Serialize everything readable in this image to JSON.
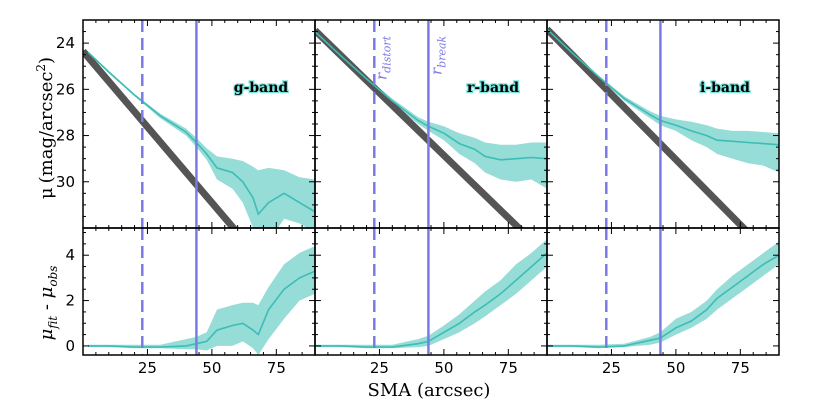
{
  "chart_data": {
    "type": "line",
    "xlabel": "SMA (arcsec)",
    "ylabel_top": "μ (mag/arcsec²)",
    "ylabel_top_parts": {
      "mu": "μ",
      "unit": "(mag/arcsec",
      "sup": "2",
      "close": ")"
    },
    "ylabel_bottom": "μfit - μobs",
    "ylabel_bottom_parts": {
      "mu1": "μ",
      "sub1": "fit",
      "dash": " - ",
      "mu2": "μ",
      "sub2": "obs"
    },
    "xlim": [
      0,
      90
    ],
    "xticks": [
      25,
      50,
      75
    ],
    "top_ylim": [
      32,
      23
    ],
    "top_yticks": [
      24,
      26,
      28,
      30
    ],
    "bottom_ylim": [
      -0.4,
      5.2
    ],
    "bottom_yticks": [
      0,
      2,
      4
    ],
    "r_distort": 23,
    "r_break": 44,
    "annotations": {
      "r_distort": {
        "r": "r",
        "sub": "distort"
      },
      "r_break": {
        "r": "r",
        "sub": "break"
      }
    },
    "colors": {
      "model": "#555555",
      "data": "#3cbdb5",
      "band": "#5ec9c1",
      "vline": "#7b7be6"
    },
    "panels": [
      {
        "band": "g-band",
        "model_x": [
          0,
          66
        ],
        "model_y": [
          24.35,
          33.0
        ],
        "obs_x": [
          2,
          10,
          20,
          30,
          40,
          44,
          48,
          52,
          58,
          62,
          66,
          68,
          72,
          78,
          84,
          90
        ],
        "obs_y": [
          24.4,
          25.25,
          26.25,
          27.15,
          27.85,
          28.3,
          28.8,
          29.4,
          29.6,
          30.0,
          30.7,
          31.4,
          30.9,
          30.5,
          30.9,
          31.3
        ],
        "obs_lo": [
          24.35,
          25.2,
          26.2,
          27.05,
          27.7,
          28.1,
          28.55,
          28.9,
          29.0,
          29.1,
          29.35,
          29.5,
          29.4,
          29.5,
          29.8,
          29.9
        ],
        "obs_hi": [
          24.45,
          25.3,
          26.3,
          27.25,
          28.0,
          28.5,
          29.05,
          29.9,
          30.3,
          30.9,
          32.0,
          33.0,
          32.6,
          31.6,
          31.8,
          32.2
        ],
        "res_x": [
          2,
          10,
          20,
          30,
          40,
          44,
          48,
          52,
          58,
          62,
          66,
          68,
          72,
          78,
          84,
          90
        ],
        "res_y": [
          0,
          0,
          -0.05,
          -0.05,
          0.0,
          0.1,
          0.2,
          0.7,
          0.9,
          1.0,
          0.7,
          0.5,
          1.6,
          2.5,
          3.0,
          3.3
        ],
        "res_lo": [
          -0.05,
          -0.05,
          -0.1,
          -0.1,
          -0.15,
          -0.15,
          -0.2,
          0.0,
          0.0,
          0.2,
          -0.1,
          -0.4,
          0.3,
          1.2,
          2.0,
          2.3
        ],
        "res_hi": [
          0.05,
          0.05,
          0.05,
          0.05,
          0.3,
          0.4,
          0.6,
          1.6,
          1.8,
          1.9,
          1.9,
          1.8,
          2.6,
          3.6,
          4.1,
          4.4
        ]
      },
      {
        "band": "r-band",
        "model_x": [
          0,
          80
        ],
        "model_y": [
          23.45,
          32.1
        ],
        "obs_x": [
          0,
          10,
          20,
          30,
          40,
          44,
          50,
          56,
          62,
          66,
          72,
          78,
          84,
          90
        ],
        "obs_y": [
          23.5,
          24.55,
          25.55,
          26.5,
          27.35,
          27.6,
          27.9,
          28.35,
          28.6,
          28.9,
          29.05,
          29.0,
          28.95,
          29.0
        ],
        "obs_lo": [
          23.45,
          24.5,
          25.5,
          26.4,
          27.2,
          27.4,
          27.6,
          27.9,
          28.1,
          28.3,
          28.4,
          28.4,
          28.3,
          28.3
        ],
        "obs_hi": [
          23.55,
          24.6,
          25.6,
          26.6,
          27.5,
          27.8,
          28.2,
          28.8,
          29.2,
          29.6,
          29.9,
          30.0,
          29.9,
          30.3
        ],
        "res_x": [
          0,
          10,
          20,
          30,
          40,
          44,
          50,
          56,
          62,
          66,
          72,
          78,
          84,
          90
        ],
        "res_y": [
          0,
          0,
          -0.05,
          -0.05,
          0.1,
          0.2,
          0.6,
          1.0,
          1.5,
          1.8,
          2.3,
          2.9,
          3.5,
          4.1
        ],
        "res_lo": [
          -0.05,
          -0.05,
          -0.1,
          -0.1,
          -0.05,
          0.0,
          0.3,
          0.6,
          1.0,
          1.3,
          1.8,
          2.3,
          2.9,
          3.5
        ],
        "res_hi": [
          0.05,
          0.05,
          0.05,
          0.05,
          0.3,
          0.45,
          0.9,
          1.4,
          2.0,
          2.4,
          2.9,
          3.6,
          4.1,
          4.7
        ]
      },
      {
        "band": "i-band",
        "model_x": [
          0,
          78
        ],
        "model_y": [
          23.4,
          32.2
        ],
        "obs_x": [
          0,
          10,
          20,
          30,
          40,
          44,
          50,
          56,
          62,
          66,
          72,
          78,
          84,
          90
        ],
        "obs_y": [
          23.4,
          24.45,
          25.45,
          26.4,
          27.1,
          27.35,
          27.55,
          27.8,
          28.0,
          28.2,
          28.25,
          28.3,
          28.35,
          28.4
        ],
        "obs_lo": [
          23.35,
          24.4,
          25.4,
          26.3,
          26.95,
          27.15,
          27.3,
          27.4,
          27.55,
          27.7,
          27.8,
          27.8,
          27.85,
          27.9
        ],
        "obs_hi": [
          23.45,
          24.5,
          25.5,
          26.5,
          27.25,
          27.55,
          27.8,
          28.2,
          28.5,
          28.8,
          29.0,
          29.2,
          29.3,
          29.6
        ],
        "res_x": [
          0,
          10,
          20,
          30,
          40,
          44,
          50,
          56,
          62,
          66,
          72,
          78,
          84,
          90
        ],
        "res_y": [
          0,
          0,
          -0.05,
          0.0,
          0.25,
          0.35,
          0.8,
          1.1,
          1.6,
          2.1,
          2.6,
          3.1,
          3.6,
          4.0
        ],
        "res_lo": [
          -0.05,
          -0.05,
          -0.1,
          -0.05,
          0.05,
          0.15,
          0.5,
          0.8,
          1.2,
          1.6,
          2.1,
          2.6,
          3.1,
          3.6
        ],
        "res_hi": [
          0.05,
          0.05,
          0.05,
          0.1,
          0.4,
          0.6,
          1.2,
          1.5,
          2.0,
          2.5,
          3.1,
          3.6,
          4.1,
          4.6
        ]
      }
    ]
  }
}
